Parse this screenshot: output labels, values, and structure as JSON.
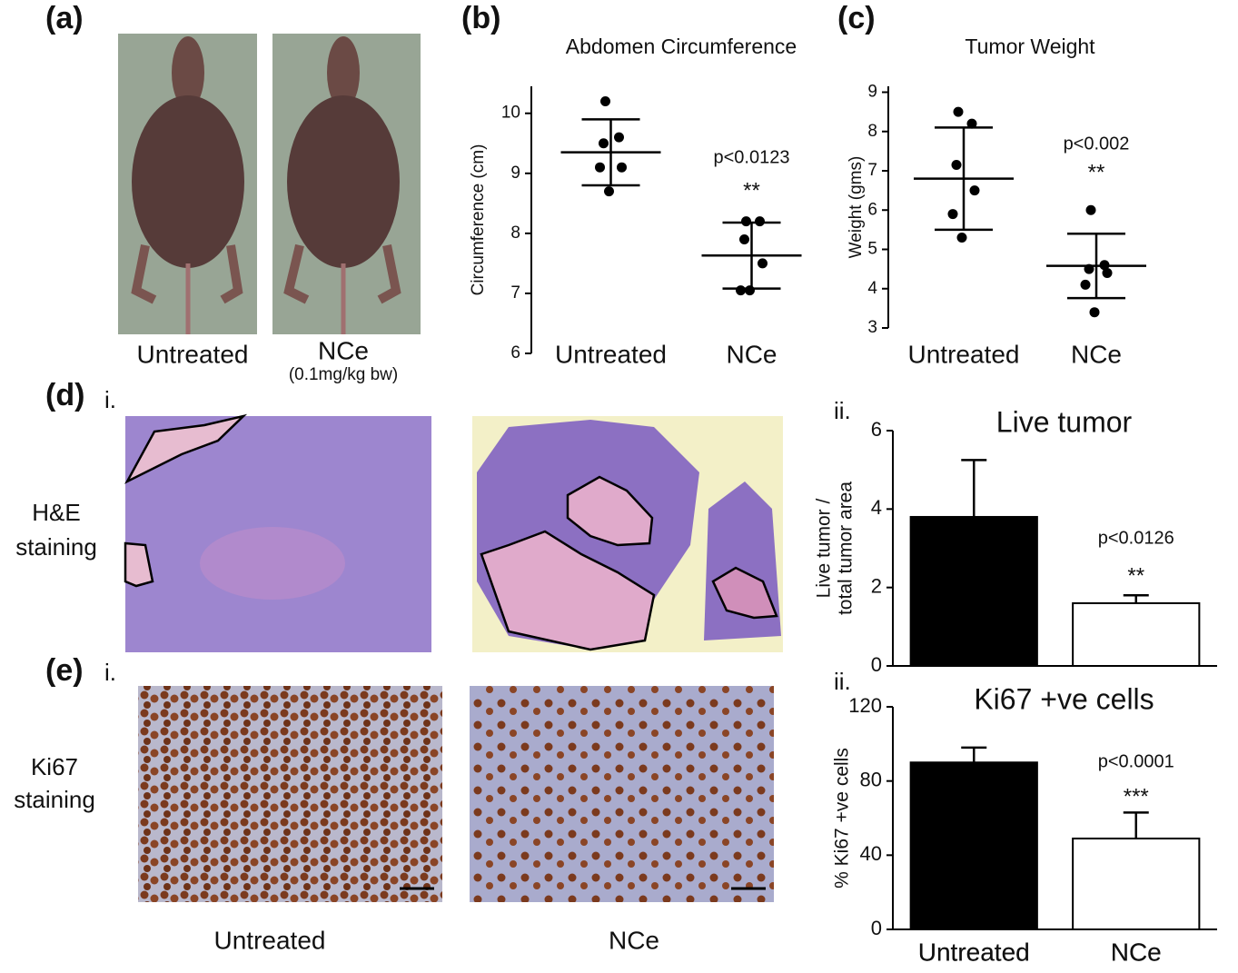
{
  "figure": {
    "panel_labels": [
      "(a)",
      "(b)",
      "(c)",
      "(d)",
      "(e)"
    ],
    "sub_labels": [
      "i.",
      "i.",
      "ii.",
      "ii."
    ],
    "mouse_captions": [
      "Untreated",
      "NCe",
      "(0.1mg/kg bw)"
    ],
    "stain_labels": [
      [
        "H&E",
        "staining"
      ],
      [
        "Ki67",
        "staining"
      ]
    ],
    "image_captions": [
      "Untreated",
      "NCe"
    ]
  },
  "chart_data": [
    {
      "type": "dot_plot",
      "title": "Abdomen Circumference",
      "ylabel": "Circumference (cm)",
      "categories": [
        "Untreated",
        "NCe"
      ],
      "points": [
        [
          10.2,
          9.6,
          9.5,
          9.1,
          9.1,
          8.7
        ],
        [
          8.2,
          8.2,
          7.9,
          7.5,
          7.05,
          7.05
        ]
      ],
      "means": [
        9.35,
        7.63
      ],
      "errors": [
        0.55,
        0.55
      ],
      "annotations": [
        "p<0.0123",
        "**"
      ],
      "ylim": [
        6,
        10.45
      ],
      "yticks": [
        6,
        7,
        8,
        9,
        10
      ],
      "color": "#000000"
    },
    {
      "type": "dot_plot",
      "title": "Tumor Weight",
      "ylabel": "Weight (gms)",
      "categories": [
        "Untreated",
        "NCe"
      ],
      "points": [
        [
          8.5,
          8.2,
          7.15,
          6.5,
          5.9,
          5.3
        ],
        [
          6.0,
          4.6,
          4.5,
          4.4,
          4.1,
          3.4
        ]
      ],
      "means": [
        6.8,
        4.58
      ],
      "errors": [
        1.3,
        0.82
      ],
      "annotations": [
        "p<0.002",
        "**"
      ],
      "ylim": [
        3,
        9.15
      ],
      "yticks": [
        3,
        4,
        5,
        6,
        7,
        8,
        9
      ],
      "color": "#000000"
    },
    {
      "type": "bar",
      "title": "Live tumor",
      "ylabel": [
        "Live tumor /",
        "total tumor area"
      ],
      "categories": [
        "Untreated",
        "NCe"
      ],
      "values": [
        3.8,
        1.6
      ],
      "errors": [
        1.45,
        0.2
      ],
      "colors": [
        "#000000",
        "#ffffff"
      ],
      "annotations": [
        "p<0.0126",
        "**"
      ],
      "ylim": [
        0,
        6
      ],
      "yticks": [
        0,
        2,
        4,
        6
      ]
    },
    {
      "type": "bar",
      "title": "Ki67 +ve cells",
      "ylabel": "% Ki67 +ve cells",
      "categories": [
        "Untreated",
        "NCe"
      ],
      "values": [
        90,
        49
      ],
      "errors": [
        8,
        14
      ],
      "colors": [
        "#000000",
        "#ffffff"
      ],
      "annotations": [
        "p<0.0001",
        "***"
      ],
      "ylim": [
        0,
        120
      ],
      "yticks": [
        0,
        40,
        80,
        120
      ]
    }
  ]
}
